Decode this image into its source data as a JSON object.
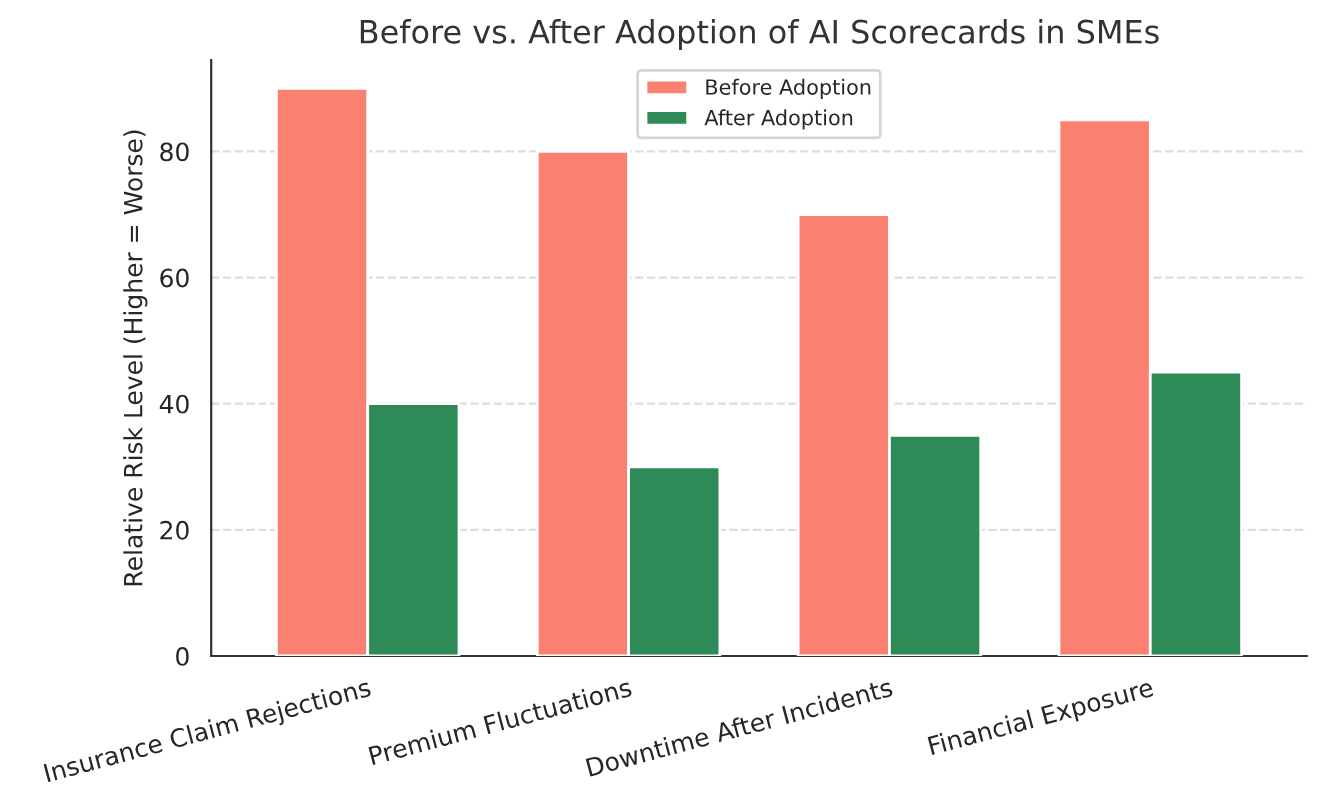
{
  "chart_data": {
    "type": "bar",
    "title": "Before vs. After Adoption of AI Scorecards in SMEs",
    "ylabel": "Relative Risk Level (Higher = Worse)",
    "categories": [
      "Insurance Claim Rejections",
      "Premium Fluctuations",
      "Downtime After Incidents",
      "Financial Exposure"
    ],
    "series": [
      {
        "name": "Before Adoption",
        "color": "#fa8072",
        "values": [
          90,
          80,
          70,
          85
        ]
      },
      {
        "name": "After Adoption",
        "color": "#2e8b57",
        "values": [
          40,
          30,
          35,
          45
        ]
      }
    ],
    "ylim": [
      0,
      94.5
    ],
    "yticks": [
      0,
      20,
      40,
      60,
      80
    ],
    "grid": "y",
    "legend": "top"
  }
}
